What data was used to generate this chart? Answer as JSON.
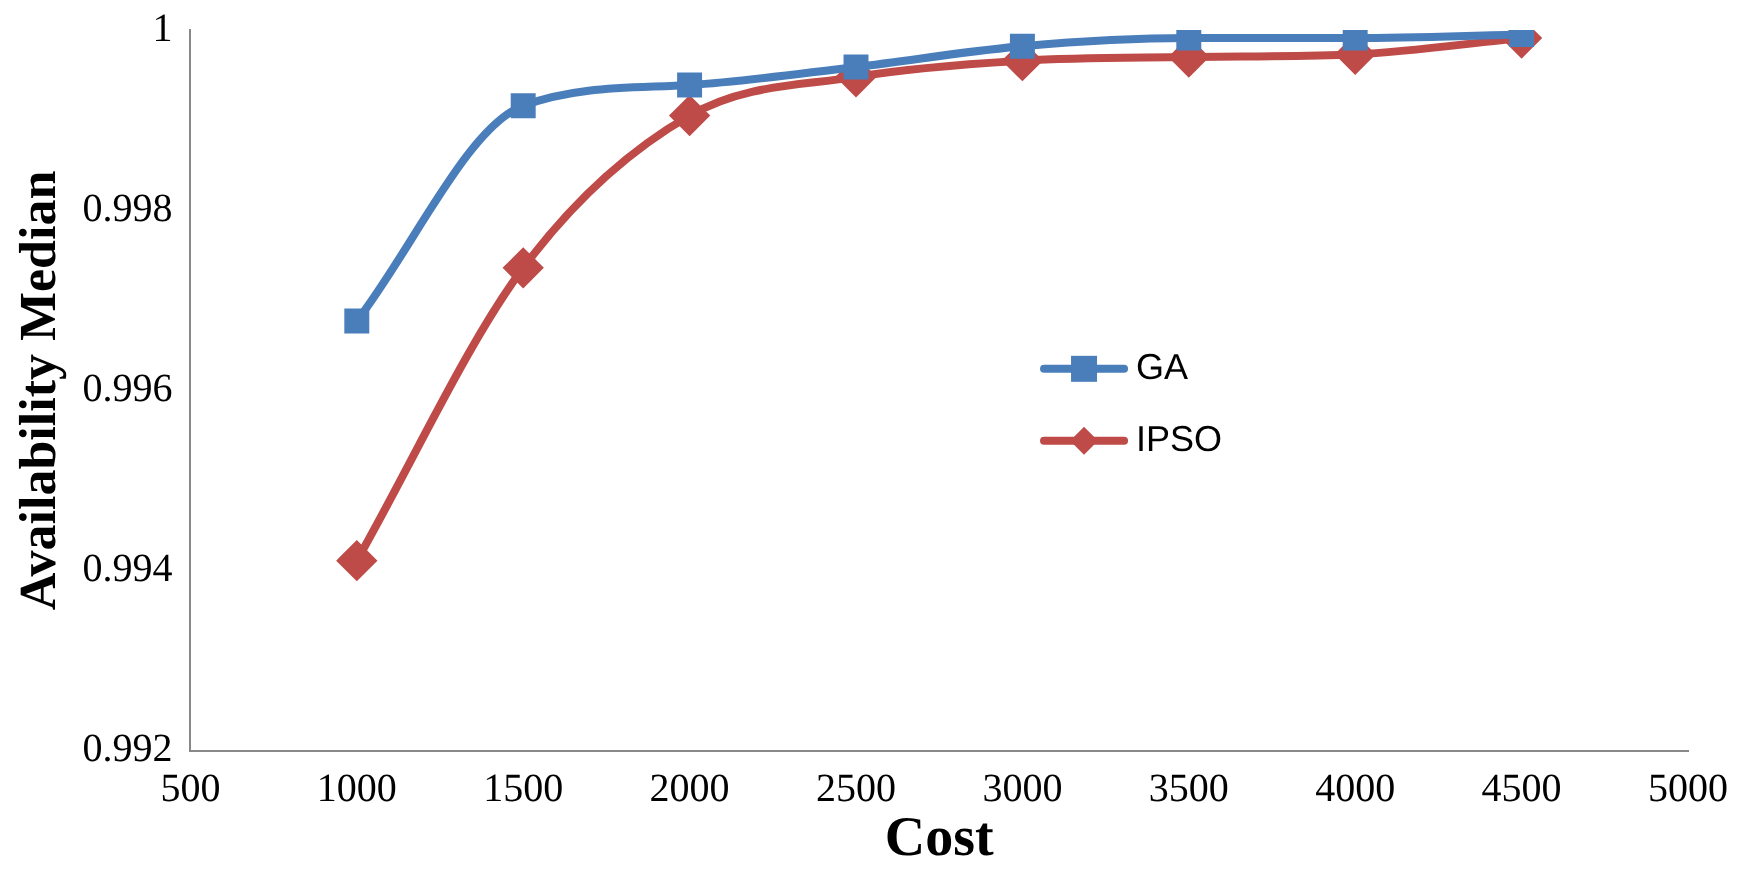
{
  "chart_data": {
    "type": "line",
    "xlabel": "Cost",
    "ylabel": "Availability Median",
    "x": [
      1000,
      1500,
      2000,
      2500,
      3000,
      3500,
      4000,
      4500
    ],
    "series": [
      {
        "name": "GA",
        "color": "#4a7ebb",
        "marker": "square",
        "values": [
          0.99677,
          0.99916,
          0.99939,
          0.99959,
          0.99982,
          0.99991,
          0.99991,
          0.99995
        ]
      },
      {
        "name": "IPSO",
        "color": "#be4b48",
        "marker": "diamond",
        "values": [
          0.99411,
          0.99736,
          0.99905,
          0.99948,
          0.99966,
          0.9997,
          0.99973,
          0.99991
        ]
      }
    ],
    "xlim": [
      500,
      5000
    ],
    "xticks": [
      500,
      1000,
      1500,
      2000,
      2500,
      3000,
      3500,
      4000,
      4500,
      5000
    ],
    "ylim": [
      0.992,
      1
    ],
    "yticks": [
      0.992,
      0.994,
      0.996,
      0.998,
      1
    ],
    "grid": false,
    "legend": "right"
  }
}
